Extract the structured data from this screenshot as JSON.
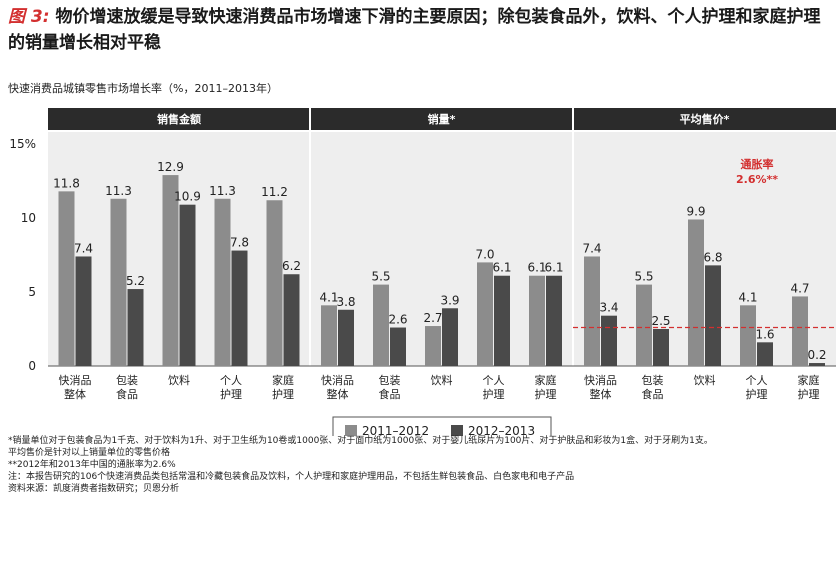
{
  "title": {
    "fig_label": "图 3:",
    "text": "物价增速放缓是导致快速消费品市场增速下滑的主要原因；除包装食品外，饮料、个人护理和家庭护理的销量增长相对平稳"
  },
  "subtitle": "快速消费品城镇零售市场增长率（%，2011–2013年）",
  "chart_data": {
    "type": "bar",
    "panels": [
      {
        "title": "销售金额",
        "categories": [
          [
            "快消品",
            "整体"
          ],
          [
            "包装",
            "食品"
          ],
          [
            "饮料"
          ],
          [
            "个人",
            "护理"
          ],
          [
            "家庭",
            "护理"
          ]
        ],
        "series": [
          {
            "name": "2011–2012",
            "values": [
              11.8,
              11.3,
              12.9,
              11.3,
              11.2
            ]
          },
          {
            "name": "2012–2013",
            "values": [
              7.4,
              5.2,
              10.9,
              7.8,
              6.2
            ]
          }
        ]
      },
      {
        "title": "销量*",
        "categories": [
          [
            "快消品",
            "整体"
          ],
          [
            "包装",
            "食品"
          ],
          [
            "饮料"
          ],
          [
            "个人",
            "护理"
          ],
          [
            "家庭",
            "护理"
          ]
        ],
        "series": [
          {
            "name": "2011–2012",
            "values": [
              4.1,
              5.5,
              2.7,
              7.0,
              6.1
            ]
          },
          {
            "name": "2012–2013",
            "values": [
              3.8,
              2.6,
              3.9,
              6.1,
              6.1
            ]
          }
        ]
      },
      {
        "title": "平均售价*",
        "categories": [
          [
            "快消品",
            "整体"
          ],
          [
            "包装",
            "食品"
          ],
          [
            "饮料"
          ],
          [
            "个人",
            "护理"
          ],
          [
            "家庭",
            "护理"
          ]
        ],
        "series": [
          {
            "name": "2011–2012",
            "values": [
              7.4,
              5.5,
              9.9,
              4.1,
              4.7
            ]
          },
          {
            "name": "2012–2013",
            "values": [
              3.4,
              2.5,
              6.8,
              1.6,
              0.2
            ]
          }
        ]
      }
    ],
    "ylim": [
      0,
      15
    ],
    "yticks": [
      "0",
      "5",
      "10",
      "15%"
    ],
    "reference_line": {
      "value": 2.6,
      "label_line1": "通胀率",
      "label_line2": "2.6%**",
      "panel": 2
    },
    "legend": [
      "2011–2012",
      "2012–2013"
    ],
    "colors": {
      "s1": "#8c8c8c",
      "s2": "#4a4a4a",
      "header": "#2b2b2b",
      "reference": "#d32f2f",
      "panel_bg": "#eeeeee"
    }
  },
  "notes": [
    "*销量单位对于包装食品为1千克、对于饮料为1升、对于卫生纸为10卷或1000张、对于面巾纸为1000张、对于婴儿纸尿片为100片、对于护肤品和彩妆为1盒、对于牙刷为1支。",
    "平均售价是针对以上销量单位的零售价格",
    "**2012年和2013年中国的通胀率为2.6%",
    "注：本报告研究的106个快速消费品类包括常温和冷藏包装食品及饮料，个人护理和家庭护理用品，不包括生鲜包装食品、白色家电和电子产品",
    "资料来源：凯度消费者指数研究；贝恩分析"
  ]
}
